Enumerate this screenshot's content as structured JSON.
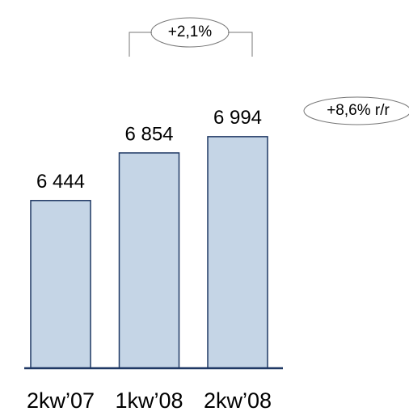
{
  "chart_data": {
    "type": "bar",
    "categories": [
      "2kw’07",
      "1kw’08",
      "2kw’08"
    ],
    "values": [
      6444,
      6854,
      6994
    ],
    "value_labels": [
      "6 444",
      "6 854",
      "6 994"
    ],
    "color": "#c5d5e6",
    "edge_color": "#1f3864",
    "ylim": [
      5000,
      7000
    ],
    "annotations": [
      "+2,1%",
      "+8,6% r/r"
    ]
  }
}
